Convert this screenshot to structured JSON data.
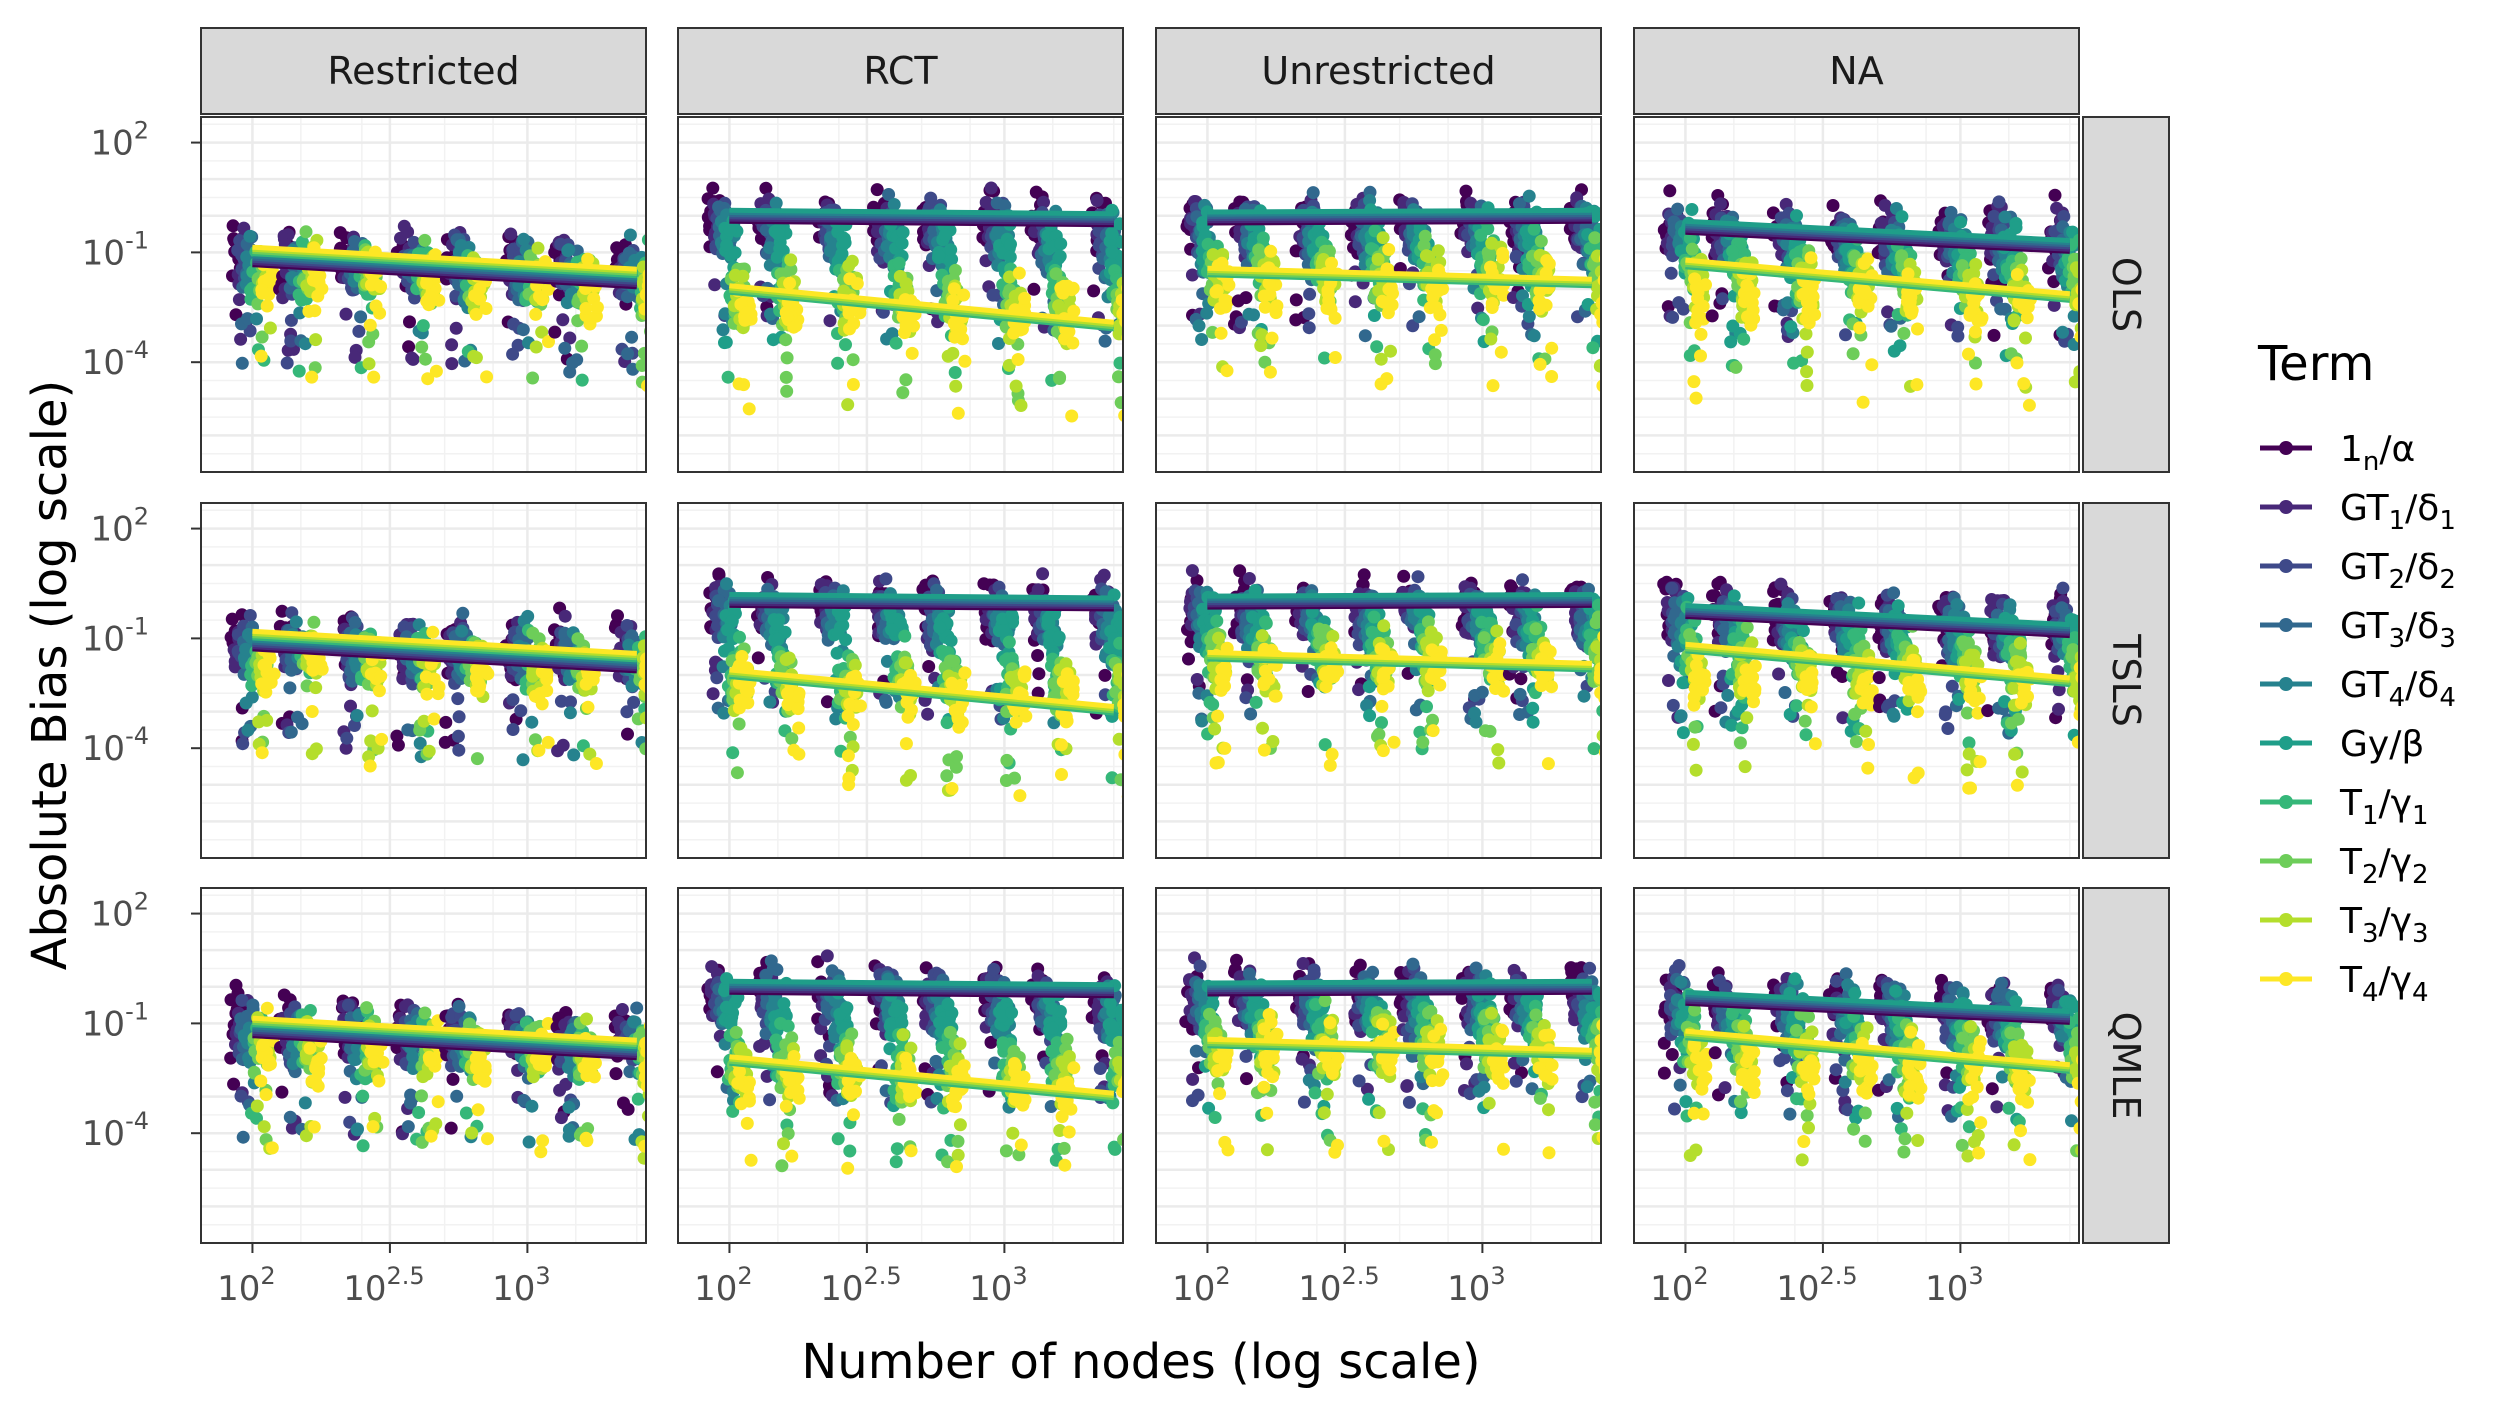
{
  "chart_data": {
    "type": "scatter",
    "title": "",
    "xlabel": "Number of nodes (log scale)",
    "ylabel": "Absolute Bias (log scale)",
    "x_scale": "log10",
    "y_scale": "log10",
    "x_ticks": [
      {
        "value": 100,
        "base": "10",
        "exp": "2"
      },
      {
        "value": 316.23,
        "base": "10",
        "exp": "2.5"
      },
      {
        "value": 1000,
        "base": "10",
        "exp": "3"
      }
    ],
    "y_ticks": [
      {
        "value": 100,
        "base": "10",
        "exp": "2"
      },
      {
        "value": 0.1,
        "base": "10",
        "exp": "-1"
      },
      {
        "value": 0.0001,
        "base": "10",
        "exp": "-4"
      }
    ],
    "xlim": [
      65,
      2700
    ],
    "ylim": [
      1e-07,
      500
    ],
    "x_values": [
      100,
      150,
      250,
      400,
      600,
      1000,
      1500,
      2500
    ],
    "facet_columns": [
      "Restricted",
      "RCT",
      "Unrestricted",
      "NA"
    ],
    "facet_rows": [
      "OLS",
      "TSLS",
      "QMLE"
    ],
    "legend": {
      "title": "Term",
      "placement": "right",
      "entries": [
        {
          "main": "1",
          "sub": "n",
          "suffix": "/α",
          "sub2": "",
          "color": "#440154"
        },
        {
          "main": "GT",
          "sub": "1",
          "suffix": "/δ",
          "sub2": "1",
          "color": "#482878"
        },
        {
          "main": "GT",
          "sub": "2",
          "suffix": "/δ",
          "sub2": "2",
          "color": "#3E4989"
        },
        {
          "main": "GT",
          "sub": "3",
          "suffix": "/δ",
          "sub2": "3",
          "color": "#31688E"
        },
        {
          "main": "GT",
          "sub": "4",
          "suffix": "/δ",
          "sub2": "4",
          "color": "#26828E"
        },
        {
          "main": "Gy",
          "sub": "",
          "suffix": "/β",
          "sub2": "",
          "color": "#1F9E89"
        },
        {
          "main": "T",
          "sub": "1",
          "suffix": "/γ",
          "sub2": "1",
          "color": "#35B779"
        },
        {
          "main": "T",
          "sub": "2",
          "suffix": "/γ",
          "sub2": "2",
          "color": "#6DCD59"
        },
        {
          "main": "T",
          "sub": "3",
          "suffix": "/γ",
          "sub2": "3",
          "color": "#B4DE2C"
        },
        {
          "main": "T",
          "sub": "4",
          "suffix": "/γ",
          "sub2": "4",
          "color": "#FDE725"
        }
      ]
    },
    "series_trends": [
      {
        "facet": "Restricted",
        "terms": [
          "1_n",
          "GT_1",
          "GT_2",
          "GT_3",
          "GT_4",
          "T_1",
          "T_2",
          "T_3",
          "T_4"
        ],
        "y_at_100": 0.08,
        "y_at_2500": 0.02
      },
      {
        "facet": "RCT",
        "terms": [
          "1_n",
          "GT_1",
          "GT_2",
          "GT_3",
          "GT_4",
          "Gy"
        ],
        "y_at_100": 1.0,
        "y_at_2500": 0.8
      },
      {
        "facet": "RCT",
        "terms": [
          "T_1",
          "T_2",
          "T_3",
          "T_4"
        ],
        "y_at_100": 0.01,
        "y_at_2500": 0.001
      },
      {
        "facet": "Unrestricted",
        "terms": [
          "1_n",
          "GT_1",
          "GT_2",
          "GT_3",
          "GT_4",
          "Gy"
        ],
        "y_at_100": 0.9,
        "y_at_2500": 1.0
      },
      {
        "facet": "Unrestricted",
        "terms": [
          "T_1",
          "T_2",
          "T_3",
          "T_4"
        ],
        "y_at_100": 0.03,
        "y_at_2500": 0.015
      },
      {
        "facet": "NA",
        "terms": [
          "1_n",
          "GT_1",
          "GT_2",
          "GT_3",
          "GT_4",
          "Gy"
        ],
        "y_at_100": 0.5,
        "y_at_2500": 0.15
      },
      {
        "facet": "NA",
        "terms": [
          "T_1",
          "T_2",
          "T_3",
          "T_4"
        ],
        "y_at_100": 0.05,
        "y_at_2500": 0.006
      }
    ],
    "grid": true,
    "theme": "bw"
  }
}
